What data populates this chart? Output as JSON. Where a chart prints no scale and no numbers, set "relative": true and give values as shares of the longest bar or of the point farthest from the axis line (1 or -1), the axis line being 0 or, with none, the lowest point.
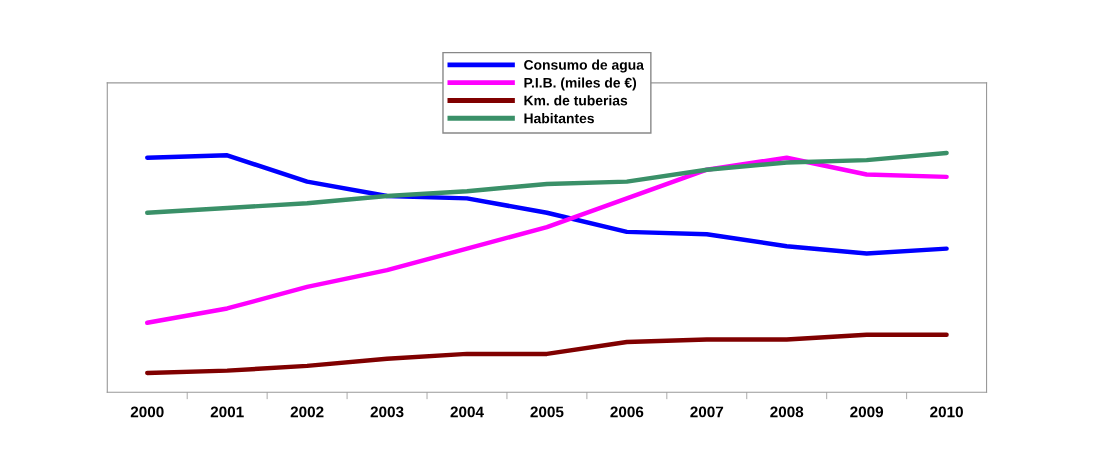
{
  "chart_data": {
    "type": "line",
    "relative": true,
    "legend": "top",
    "grid": false,
    "marker": "none",
    "line_style": "solid",
    "categories": [
      "2000",
      "2001",
      "2002",
      "2003",
      "2004",
      "2005",
      "2006",
      "2007",
      "2008",
      "2009",
      "2010"
    ],
    "series": [
      {
        "name": "Consumo de agua",
        "color": "#0000ff",
        "values": [
          0.98,
          0.99,
          0.88,
          0.82,
          0.81,
          0.75,
          0.67,
          0.66,
          0.61,
          0.58,
          0.6
        ]
      },
      {
        "name": "P.I.B. (miles de €)",
        "color": "#ff00ff",
        "values": [
          0.29,
          0.35,
          0.44,
          0.51,
          0.6,
          0.69,
          0.81,
          0.93,
          0.98,
          0.91,
          0.9
        ]
      },
      {
        "name": "Km. de tuberias",
        "color": "#800000",
        "values": [
          0.08,
          0.09,
          0.11,
          0.14,
          0.16,
          0.16,
          0.21,
          0.22,
          0.22,
          0.24,
          0.24
        ]
      },
      {
        "name": "Habitantes",
        "color": "#3a9068",
        "values": [
          0.75,
          0.77,
          0.79,
          0.82,
          0.84,
          0.87,
          0.88,
          0.93,
          0.96,
          0.97,
          1
        ]
      }
    ]
  }
}
